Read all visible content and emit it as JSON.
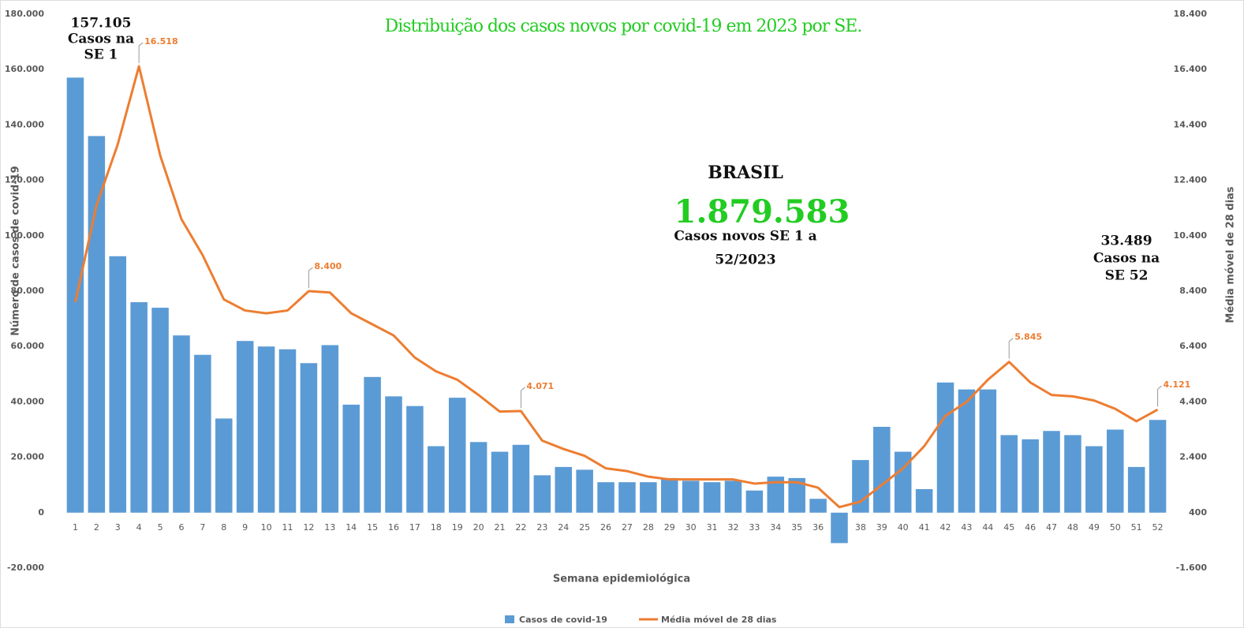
{
  "chart_data": {
    "type": "bar-line",
    "title": "Distribuição dos casos novos por covid-19 em 2023 por SE.",
    "x_label": "Semana epidemiológica",
    "y_label": "Número de casos de covid-19",
    "y2_label": "Média móvel de 28 dias",
    "categories": [
      "1",
      "2",
      "3",
      "4",
      "5",
      "6",
      "7",
      "8",
      "9",
      "10",
      "11",
      "12",
      "13",
      "14",
      "15",
      "16",
      "17",
      "18",
      "19",
      "20",
      "21",
      "22",
      "23",
      "24",
      "25",
      "26",
      "27",
      "28",
      "29",
      "30",
      "31",
      "32",
      "33",
      "34",
      "35",
      "36",
      "37",
      "38",
      "39",
      "40",
      "41",
      "42",
      "43",
      "44",
      "45",
      "46",
      "47",
      "48",
      "49",
      "50",
      "51",
      "52"
    ],
    "series": [
      {
        "name": "Casos de covid-19",
        "color": "#5b9bd5",
        "kind": "bar",
        "values": [
          157105,
          136000,
          92600,
          76000,
          74000,
          64000,
          57000,
          34000,
          62000,
          60000,
          59000,
          54000,
          60500,
          39000,
          49000,
          42000,
          38500,
          24000,
          41500,
          25500,
          22000,
          24500,
          13500,
          16500,
          15500,
          11000,
          11000,
          11000,
          12500,
          11500,
          11000,
          11500,
          8000,
          13000,
          12500,
          5000,
          -11000,
          19000,
          31000,
          22000,
          8500,
          47000,
          44500,
          44500,
          28000,
          26500,
          29500,
          28000,
          24000,
          30000,
          16500,
          33489
        ]
      },
      {
        "name": "Média móvel de 28 dias",
        "color": "#ed7d31",
        "kind": "line",
        "axis": "y2",
        "values": [
          8000,
          11500,
          13700,
          16518,
          13300,
          11000,
          9700,
          8100,
          7700,
          7600,
          7700,
          8400,
          8350,
          7600,
          7200,
          6800,
          6000,
          5500,
          5200,
          4650,
          4050,
          4071,
          3000,
          2700,
          2450,
          2000,
          1900,
          1700,
          1600,
          1600,
          1600,
          1600,
          1450,
          1500,
          1500,
          1300,
          600,
          800,
          1400,
          2000,
          2800,
          3900,
          4400,
          5200,
          5845,
          5100,
          4650,
          4600,
          4450,
          4150,
          3700,
          4121
        ],
        "value_labels": [
          null,
          null,
          null,
          "16.518",
          null,
          null,
          null,
          null,
          null,
          null,
          null,
          "8.400",
          null,
          null,
          null,
          null,
          null,
          null,
          null,
          null,
          null,
          "4.071",
          null,
          null,
          null,
          null,
          null,
          null,
          null,
          null,
          null,
          null,
          null,
          null,
          null,
          null,
          null,
          null,
          null,
          null,
          null,
          null,
          null,
          null,
          "5.845",
          null,
          null,
          null,
          null,
          null,
          null,
          "4.121"
        ]
      }
    ],
    "ylim": [
      -20000,
      180000
    ],
    "yticks": [
      {
        "value": -20000,
        "label": "-20.000"
      },
      0,
      {
        "value": 20000,
        "label": "20.000"
      },
      {
        "value": 40000,
        "label": "40.000"
      },
      {
        "value": 60000,
        "label": "60.000"
      },
      {
        "value": 80000,
        "label": "80.000"
      },
      {
        "value": 100000,
        "label": "100.000"
      },
      {
        "value": 120000,
        "label": "120.000"
      },
      {
        "value": 140000,
        "label": "140.000"
      },
      {
        "value": 160000,
        "label": "160.000"
      },
      {
        "value": 180000,
        "label": "180.000"
      }
    ],
    "y2lim": [
      -1600,
      18400
    ],
    "y2ticks": [
      {
        "value": -1600,
        "label": "-1.600"
      },
      400,
      {
        "value": 2400,
        "label": "2.400"
      },
      {
        "value": 4400,
        "label": "4.400"
      },
      {
        "value": 6400,
        "label": "6.400"
      },
      {
        "value": 8400,
        "label": "8.400"
      },
      {
        "value": 10400,
        "label": "10.400"
      },
      {
        "value": 12400,
        "label": "12.400"
      },
      {
        "value": 14400,
        "label": "14.400"
      },
      {
        "value": 16400,
        "label": "16.400"
      },
      {
        "value": 18400,
        "label": "18.400"
      }
    ],
    "legend": "bottom",
    "annotations": [
      {
        "lines": [
          "157.105",
          "Casos na",
          "SE 1"
        ]
      },
      {
        "lines": [
          "BRASIL"
        ]
      },
      {
        "lines": [
          "1.879.583"
        ],
        "color": "#22cc22"
      },
      {
        "lines": [
          "Casos novos SE 1 a",
          "52/2023"
        ]
      },
      {
        "lines": [
          "33.489",
          "Casos na",
          "SE 52"
        ]
      }
    ]
  }
}
